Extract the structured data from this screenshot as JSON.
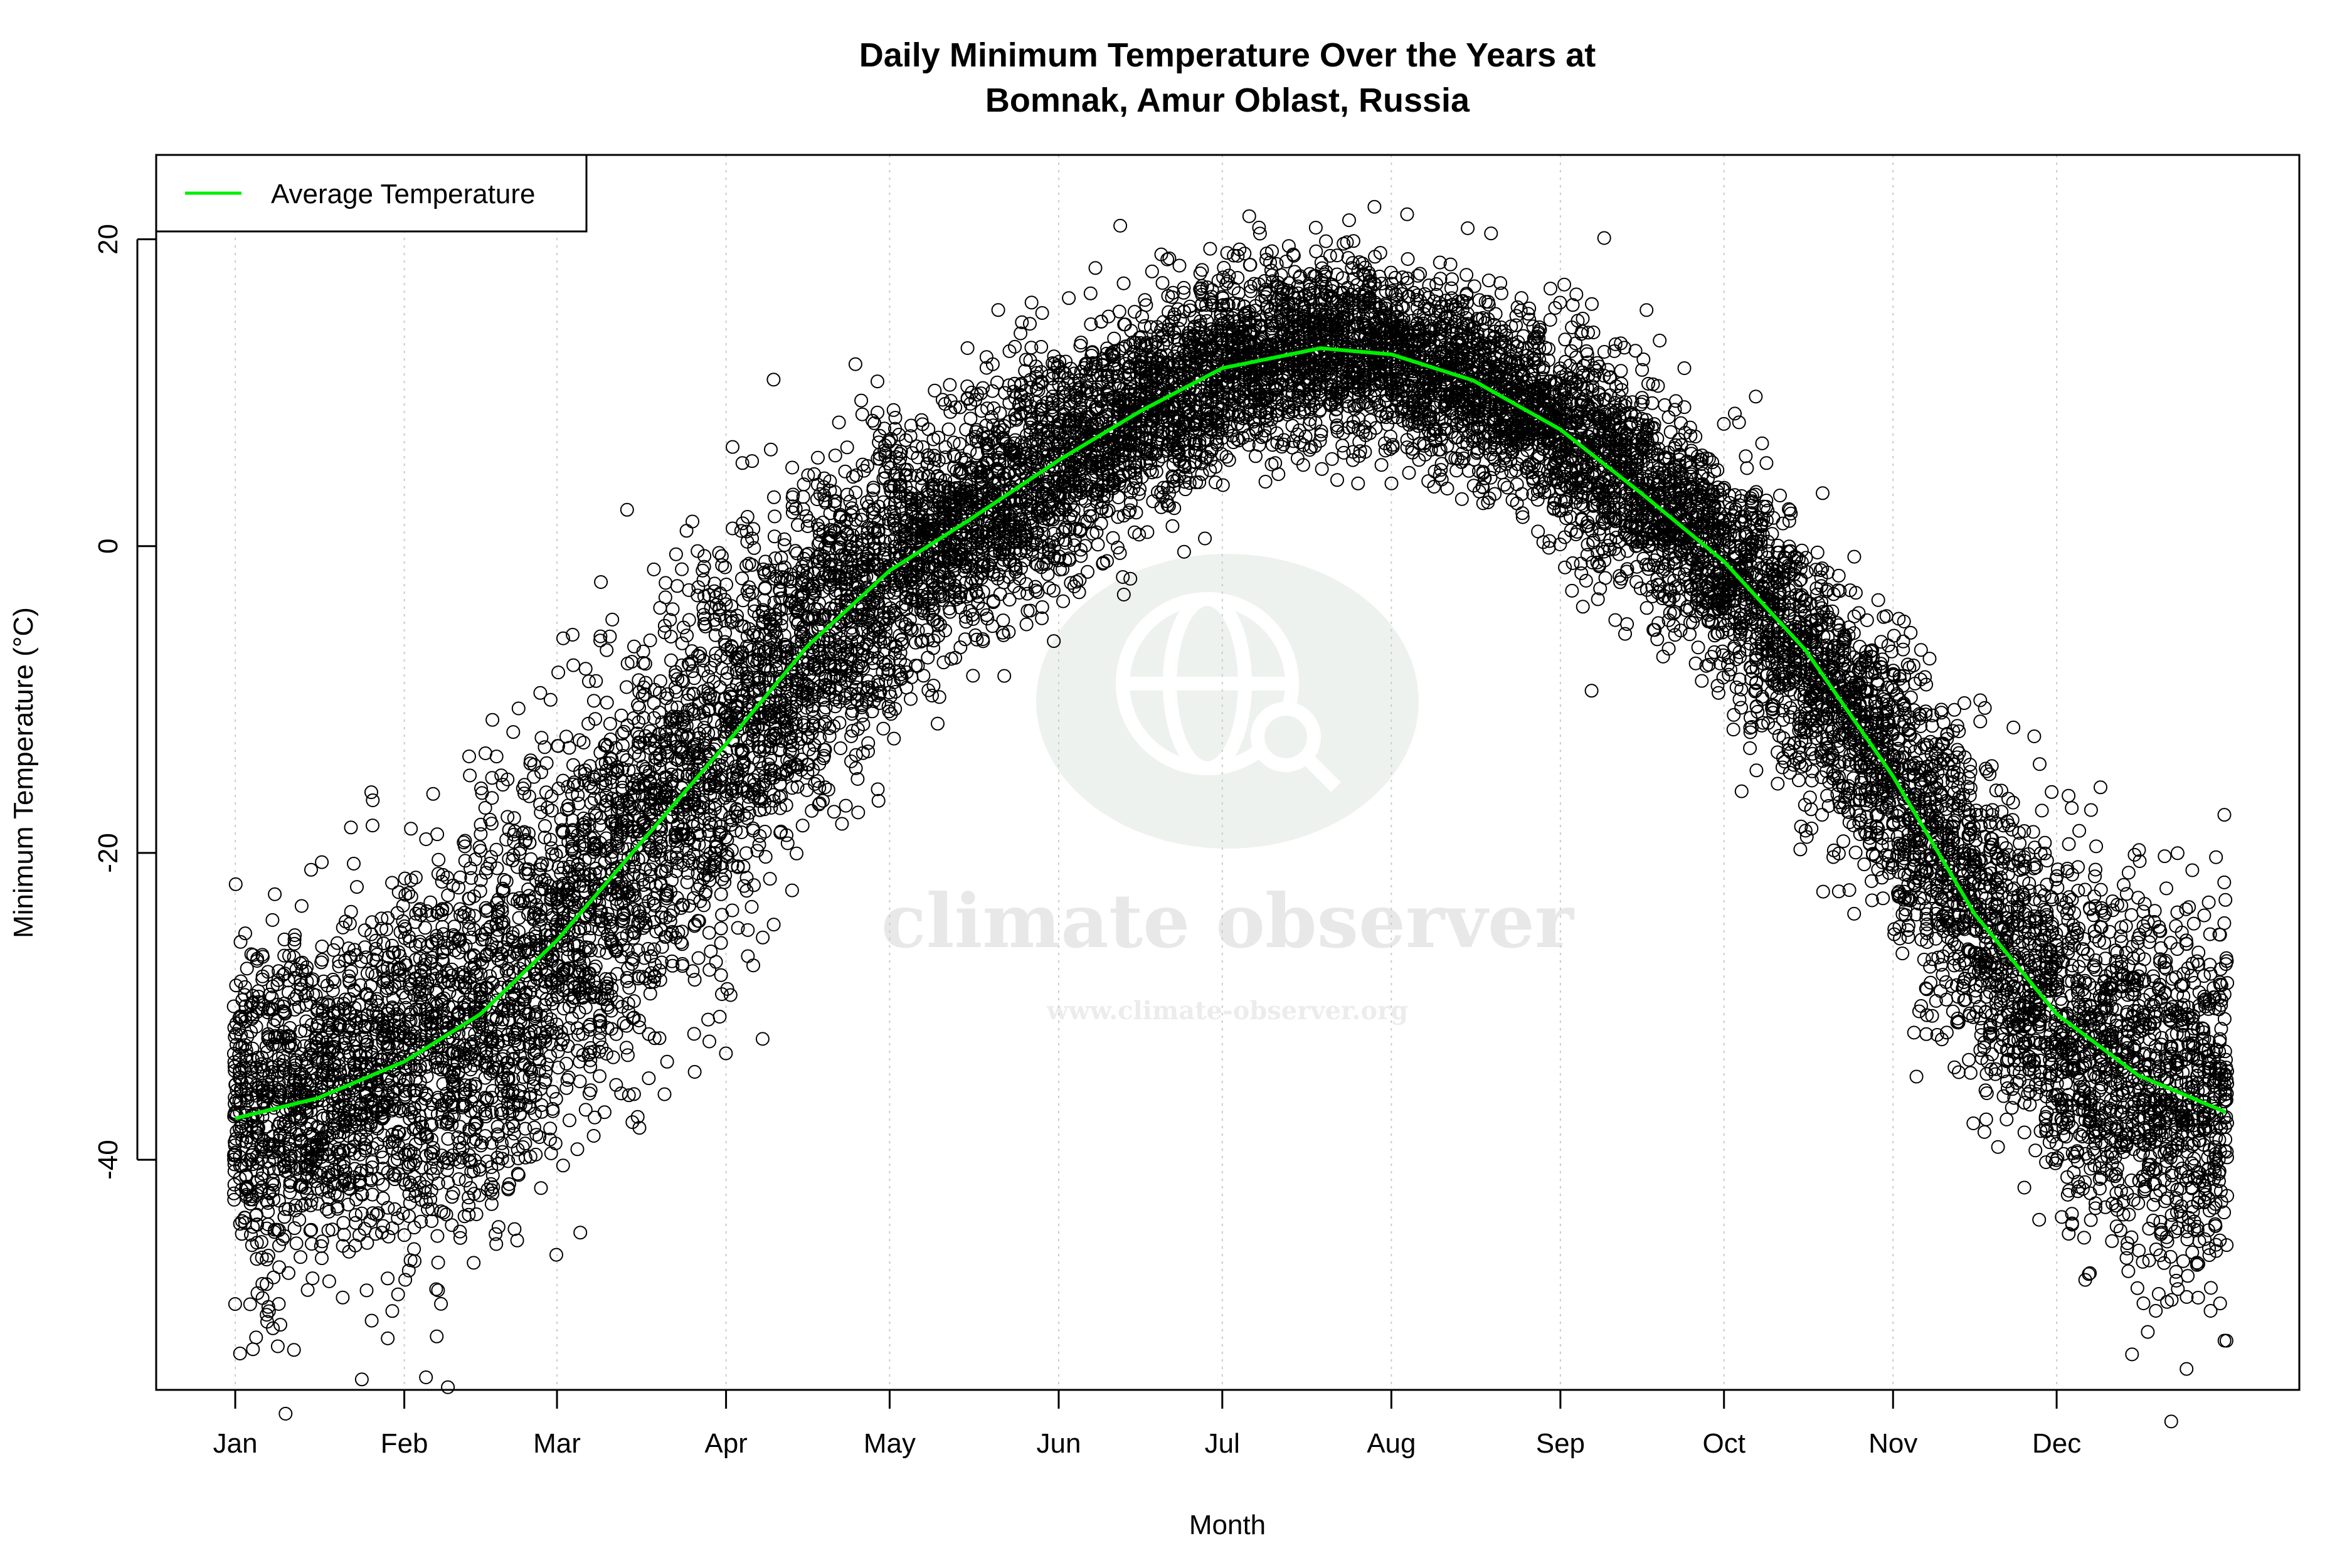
{
  "chart_data": {
    "type": "scatter",
    "title_line1": "Daily Minimum Temperature Over the Years at",
    "title_line2": "Bomnak, Amur Oblast, Russia",
    "xlabel": "Month",
    "ylabel": "Minimum Temperature (°C)",
    "x_unit": "day of year",
    "xlim": [
      -13.5,
      379.5
    ],
    "ylim": [
      -55,
      25.5
    ],
    "x_ticks": [
      {
        "label": "Jan",
        "day": 1
      },
      {
        "label": "Feb",
        "day": 32
      },
      {
        "label": "Mar",
        "day": 60
      },
      {
        "label": "Apr",
        "day": 91
      },
      {
        "label": "May",
        "day": 121
      },
      {
        "label": "Jun",
        "day": 152
      },
      {
        "label": "Jul",
        "day": 182
      },
      {
        "label": "Aug",
        "day": 213
      },
      {
        "label": "Sep",
        "day": 244
      },
      {
        "label": "Oct",
        "day": 274
      },
      {
        "label": "Nov",
        "day": 305
      },
      {
        "label": "Dec",
        "day": 335
      }
    ],
    "y_ticks": [
      -40,
      -20,
      0,
      20
    ],
    "grid": "vertical dotted at month ticks",
    "legend": {
      "placement": "top-left",
      "entries": [
        {
          "label": "Average Temperature",
          "color": "#00ee00"
        }
      ]
    },
    "average_curve": {
      "name": "Average Temperature",
      "color": "#00ee00",
      "days": [
        1,
        16,
        32,
        46,
        60,
        75,
        91,
        106,
        121,
        136,
        152,
        167,
        182,
        200,
        213,
        228,
        244,
        259,
        274,
        289,
        305,
        320,
        335,
        350,
        366
      ],
      "values": [
        -37.3,
        -36.0,
        -33.6,
        -30.5,
        -25.7,
        -19.5,
        -12.9,
        -6.5,
        -1.6,
        1.8,
        5.6,
        8.8,
        11.6,
        12.9,
        12.5,
        10.8,
        7.6,
        3.4,
        -1.0,
        -6.8,
        -15.0,
        -24.0,
        -30.5,
        -34.5,
        -36.9
      ]
    },
    "scatter": {
      "marker": "open circle",
      "color": "#000000",
      "spread_std_by_month": [
        5.5,
        6.5,
        6.5,
        5.5,
        4.0,
        3.5,
        3.0,
        3.0,
        3.5,
        4.0,
        5.0,
        6.0
      ],
      "day_range": [
        1,
        366
      ],
      "approx_years": 38
    },
    "watermark": {
      "name": "climate observer",
      "url": "www.climate-observer.org",
      "icon": "globe-search-icon",
      "color": "#e6ece6"
    }
  }
}
